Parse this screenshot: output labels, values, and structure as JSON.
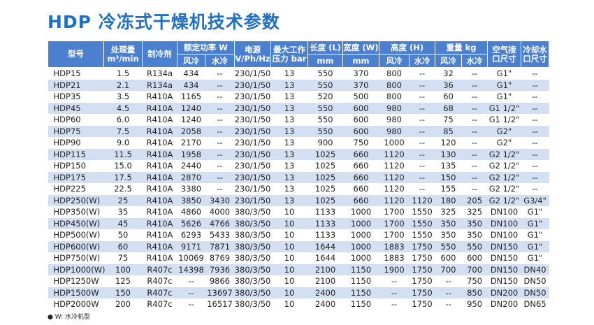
{
  "title": "HDP 冷冻式干燥机技术参数",
  "table": {
    "header": [
      "型号",
      "处理量\nm³/min",
      "制冷剂",
      "额定功率 W",
      "电源\nV/Ph/Hz",
      "最大工作\n压力 bar",
      "长度 (L)",
      "宽度 (W)",
      "高度 (H)",
      "重量 kg",
      "空气接\n口尺寸",
      "冷却水\n口尺寸"
    ],
    "subheader": [
      "风冷",
      "水冷",
      "mm",
      "mm",
      "风冷",
      "水冷",
      "风冷",
      "水冷"
    ],
    "rows": [
      [
        "HDP15",
        "1.5",
        "R134a",
        "434",
        "--",
        "230/1/50",
        "13",
        "550",
        "370",
        "800",
        "--",
        "32",
        "--",
        "G1\"",
        "--"
      ],
      [
        "HDP21",
        "2.1",
        "R134a",
        "434",
        "--",
        "230/1/50",
        "13",
        "550",
        "370",
        "800",
        "--",
        "36",
        "--",
        "G1\"",
        "--"
      ],
      [
        "HDP35",
        "3.5",
        "R410A",
        "1165",
        "--",
        "230/1/50",
        "13",
        "520",
        "500",
        "800",
        "--",
        "60",
        "--",
        "G1\"",
        "--"
      ],
      [
        "HDP45",
        "4.5",
        "R410A",
        "1240",
        "--",
        "230/1/50",
        "13",
        "550",
        "600",
        "980",
        "--",
        "68",
        "--",
        "G1 1/2\"",
        "--"
      ],
      [
        "HDP60",
        "6.0",
        "R410A",
        "1240",
        "--",
        "230/1/50",
        "13",
        "550",
        "600",
        "980",
        "--",
        "75",
        "--",
        "G1 1/2\"",
        "--"
      ],
      [
        "HDP75",
        "7.5",
        "R410A",
        "2058",
        "--",
        "230/1/50",
        "13",
        "550",
        "600",
        "980",
        "--",
        "85",
        "--",
        "G2\"",
        "--"
      ],
      [
        "HDP90",
        "9.0",
        "R410A",
        "2170",
        "--",
        "230/1/50",
        "13",
        "900",
        "750",
        "1000",
        "--",
        "120",
        "--",
        "G2\"",
        "--"
      ],
      [
        "HDP115",
        "11.5",
        "R410A",
        "1958",
        "--",
        "230/1/50",
        "13",
        "1025",
        "660",
        "1120",
        "--",
        "130",
        "--",
        "G2 1/2\"",
        "--"
      ],
      [
        "HDP150",
        "15.0",
        "R410A",
        "2440",
        "--",
        "230/1/50",
        "13",
        "1025",
        "660",
        "1120",
        "--",
        "135",
        "--",
        "G2 1/2\"",
        "--"
      ],
      [
        "HDP175",
        "17.5",
        "R410A",
        "2870",
        "--",
        "230/1/50",
        "13",
        "1025",
        "660",
        "1120",
        "--",
        "150",
        "--",
        "G2 1/2\"",
        "--"
      ],
      [
        "HDP225",
        "22.5",
        "R410A",
        "3380",
        "--",
        "230/1/50",
        "13",
        "1025",
        "660",
        "1120",
        "--",
        "155",
        "--",
        "G2 1/2\"",
        "--"
      ],
      [
        "HDP250(W)",
        "25",
        "R410A",
        "3850",
        "3430",
        "230/1/50",
        "13",
        "1025",
        "660",
        "1120",
        "1120",
        "180",
        "205",
        "G2 1/2\"",
        "G3/4\""
      ],
      [
        "HDP350(W)",
        "35",
        "R410A",
        "4860",
        "4000",
        "380/3/50",
        "10",
        "1133",
        "1000",
        "1700",
        "1550",
        "325",
        "325",
        "DN100",
        "G1\""
      ],
      [
        "HDP450(W)",
        "45",
        "R410A",
        "5626",
        "4766",
        "380/3/50",
        "10",
        "1133",
        "1000",
        "1700",
        "1550",
        "350",
        "350",
        "DN100",
        "G1\""
      ],
      [
        "HDP500(W)",
        "50",
        "R410A",
        "6293",
        "5433",
        "380/3/50",
        "10",
        "1133",
        "1000",
        "1700",
        "1550",
        "350",
        "350",
        "DN100",
        "G1\""
      ],
      [
        "HDP600(W)",
        "60",
        "R410A",
        "9171",
        "7871",
        "380/3/50",
        "10",
        "1644",
        "1000",
        "1883",
        "1750",
        "550",
        "550",
        "DN150",
        "G1\""
      ],
      [
        "HDP750(W)",
        "75",
        "R410A",
        "10069",
        "8769",
        "380/3/50",
        "10",
        "1644",
        "1000",
        "1883",
        "1750",
        "600",
        "600",
        "DN150",
        "G1\""
      ],
      [
        "HDP1000(W)",
        "100",
        "R407c",
        "14398",
        "7936",
        "380/3/50",
        "10",
        "2100",
        "1150",
        "1900",
        "1750",
        "700",
        "700",
        "DN150",
        "DN40"
      ],
      [
        "HDP1250W",
        "125",
        "R407c",
        "--",
        "9866",
        "380/3/50",
        "10",
        "2100",
        "1150",
        "--",
        "1750",
        "--",
        "750",
        "DN150",
        "DN50"
      ],
      [
        "HDP1500W",
        "150",
        "R407c",
        "--",
        "13697",
        "380/3/50",
        "10",
        "2400",
        "1150",
        "--",
        "1750",
        "--",
        "850",
        "DN200",
        "DN50"
      ],
      [
        "HDP2000W",
        "200",
        "R407c",
        "--",
        "16517",
        "380/3/50",
        "10",
        "2400",
        "1150",
        "--",
        "1750",
        "--",
        "950",
        "DN200",
        "DN65"
      ]
    ]
  },
  "footnote": "● W: 水冷机型"
}
